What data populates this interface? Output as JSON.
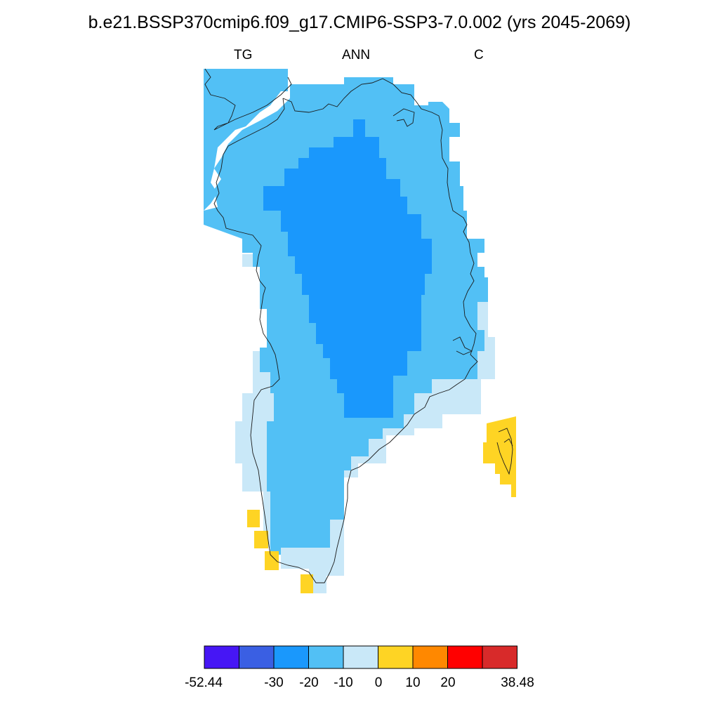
{
  "title": "b.e21.BSSP370cmip6.f09_g17.CMIP6-SSP3-7.0.002 (yrs 2045-2069)",
  "subtitle": {
    "left": "TG",
    "center": "ANN",
    "right": "C"
  },
  "colorbar": {
    "colors": [
      "#4616f5",
      "#3a5fe3",
      "#1a98fc",
      "#52c0f5",
      "#c9e8f8",
      "#fed424",
      "#ff8800",
      "#ff0000",
      "#d82a2a"
    ],
    "labels": [
      "-52.44",
      "-30",
      "-20",
      "-10",
      "0",
      "10",
      "20",
      "38.48"
    ]
  },
  "map": {
    "region": "Greenland",
    "variable": "TG",
    "classes": {
      "lt_minus_20": "#1a98fc",
      "minus_20_to_minus_10": "#52c0f5",
      "minus_10_to_0": "#c9e8f8",
      "0_to_10": "#fed424"
    }
  }
}
